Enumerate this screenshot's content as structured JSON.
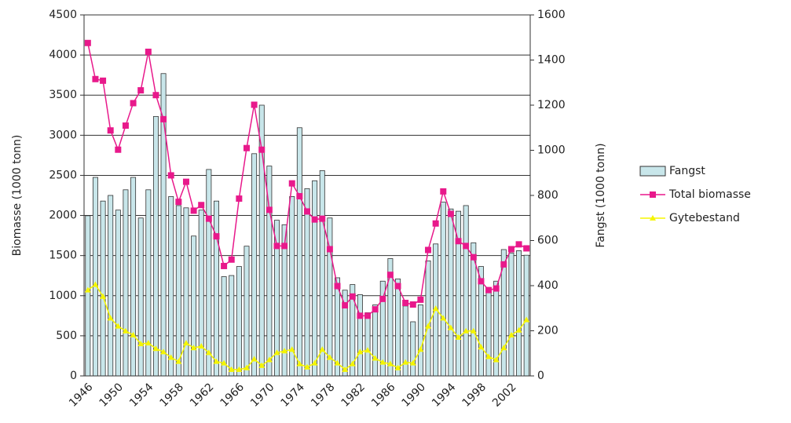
{
  "chart_data": {
    "type": "bar-line",
    "categories": [
      "1946",
      null,
      null,
      null,
      "1950",
      null,
      null,
      null,
      "1954",
      null,
      null,
      null,
      "1958",
      null,
      null,
      null,
      "1962",
      null,
      null,
      null,
      "1966",
      null,
      null,
      null,
      "1970",
      null,
      null,
      null,
      "1974",
      null,
      null,
      null,
      "1978",
      null,
      null,
      null,
      "1982",
      null,
      null,
      null,
      "1986",
      null,
      null,
      null,
      "1990",
      null,
      null,
      null,
      "1994",
      null,
      null,
      null,
      "1998",
      null,
      null,
      null,
      "2002",
      null,
      null
    ],
    "ylabel": "Biomasse (1000 tonn)",
    "y2label": "Fangst (1000 tonn)",
    "ylim": [
      0,
      4500
    ],
    "yticks": [
      0,
      500,
      1000,
      1500,
      2000,
      2500,
      3000,
      3500,
      4000,
      4500
    ],
    "y2lim": [
      0,
      1600
    ],
    "y2ticks": [
      0,
      200,
      400,
      600,
      800,
      1000,
      1200,
      1400,
      1600
    ],
    "grid": true,
    "legend": "right",
    "series": [
      {
        "name": "Fangst",
        "kind": "bar",
        "axis": "y2",
        "color": "#c8e6ea",
        "values": [
          710,
          880,
          775,
          800,
          735,
          825,
          880,
          700,
          825,
          1150,
          1340,
          795,
          755,
          745,
          620,
          735,
          915,
          775,
          440,
          445,
          485,
          575,
          985,
          1200,
          930,
          690,
          670,
          795,
          1100,
          830,
          865,
          910,
          700,
          435,
          380,
          405,
          360,
          280,
          315,
          420,
          520,
          430,
          310,
          240,
          315,
          510,
          585,
          770,
          740,
          730,
          755,
          590,
          485,
          380,
          420,
          560,
          545,
          555,
          535
        ]
      },
      {
        "name": "Total biomasse",
        "kind": "line",
        "marker": "square",
        "color": "#e8198b",
        "values": [
          4150,
          3700,
          3680,
          3060,
          2820,
          3120,
          3400,
          3560,
          4040,
          3500,
          3200,
          2500,
          2170,
          2420,
          2060,
          2130,
          1960,
          1740,
          1370,
          1450,
          2210,
          2840,
          3380,
          2820,
          2070,
          1620,
          1620,
          2400,
          2240,
          2050,
          1950,
          1960,
          1580,
          1120,
          880,
          990,
          750,
          750,
          830,
          960,
          1260,
          1120,
          910,
          890,
          950,
          1570,
          1900,
          2300,
          2020,
          1680,
          1620,
          1480,
          1180,
          1070,
          1090,
          1390,
          1580,
          1640,
          1590
        ]
      },
      {
        "name": "Gytebestand",
        "kind": "line",
        "marker": "triangle",
        "color": "#f5f500",
        "values": [
          1070,
          1140,
          990,
          720,
          620,
          560,
          510,
          400,
          410,
          340,
          300,
          230,
          180,
          410,
          350,
          370,
          290,
          180,
          160,
          80,
          80,
          100,
          210,
          130,
          200,
          290,
          310,
          330,
          150,
          110,
          160,
          330,
          230,
          160,
          80,
          150,
          300,
          320,
          220,
          170,
          150,
          100,
          170,
          160,
          330,
          620,
          840,
          720,
          600,
          480,
          560,
          560,
          360,
          240,
          200,
          350,
          510,
          570,
          700
        ]
      }
    ]
  }
}
